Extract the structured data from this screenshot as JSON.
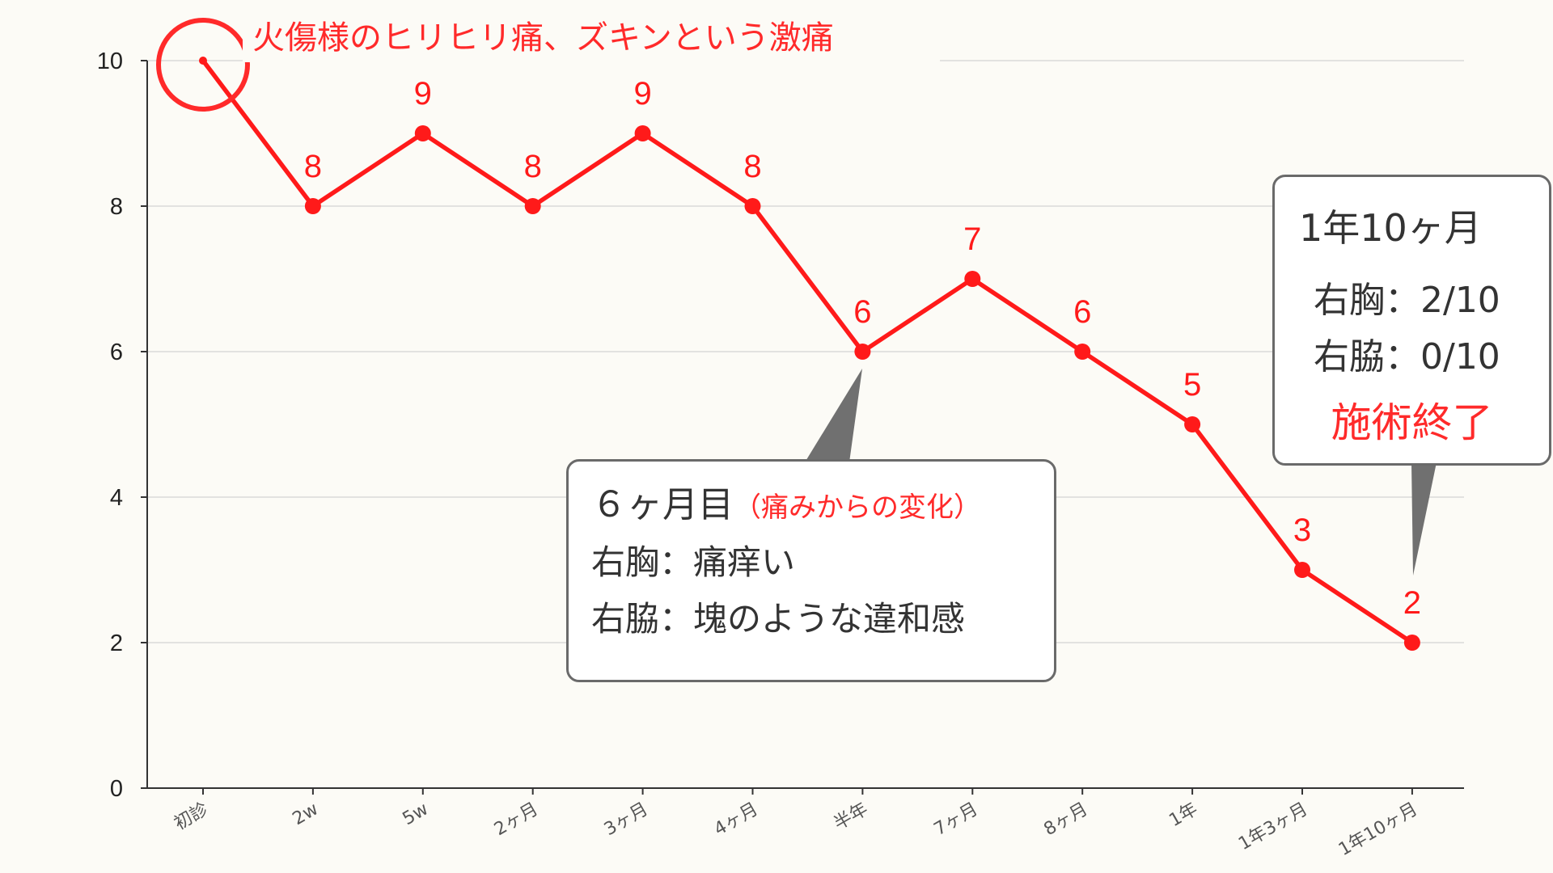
{
  "chart_data": {
    "type": "line",
    "categories": [
      "初診",
      "2w",
      "5w",
      "2ヶ月",
      "3ヶ月",
      "4ヶ月",
      "半年",
      "7ヶ月",
      "8ヶ月",
      "1年",
      "1年3ヶ月",
      "1年10ヶ月"
    ],
    "series": [
      {
        "values": [
          10,
          8,
          9,
          8,
          9,
          8,
          6,
          7,
          6,
          5,
          3,
          2
        ],
        "color": "#ff1a1a"
      }
    ],
    "data_labels": [
      "",
      "8",
      "9",
      "8",
      "9",
      "8",
      "6",
      "7",
      "6",
      "5",
      "3",
      "2"
    ],
    "yticks": [
      "0",
      "2",
      "4",
      "6",
      "8",
      "10"
    ],
    "ylim": [
      0,
      10
    ],
    "grid": true,
    "title": "",
    "xlabel": "",
    "ylabel": ""
  },
  "annotations": {
    "first_visit_note": "火傷様のヒリヒリ痛、ズキンという激痛",
    "callout_6m": {
      "title": "６ヶ月目",
      "subtitle": "（痛みからの変化）",
      "line1": "右胸：痛痒い",
      "line2": "右脇：塊のような違和感"
    },
    "callout_end": {
      "title": "1年10ヶ月",
      "line1": "右胸：2/10",
      "line2": "右脇：0/10",
      "conclusion": "施術終了"
    }
  },
  "colors": {
    "line": "#ff1a1a",
    "highlight": "#ff2a2a",
    "grid": "#d9d9d9",
    "callout_border": "#6a6a6a",
    "background": "#fcfbf6"
  }
}
